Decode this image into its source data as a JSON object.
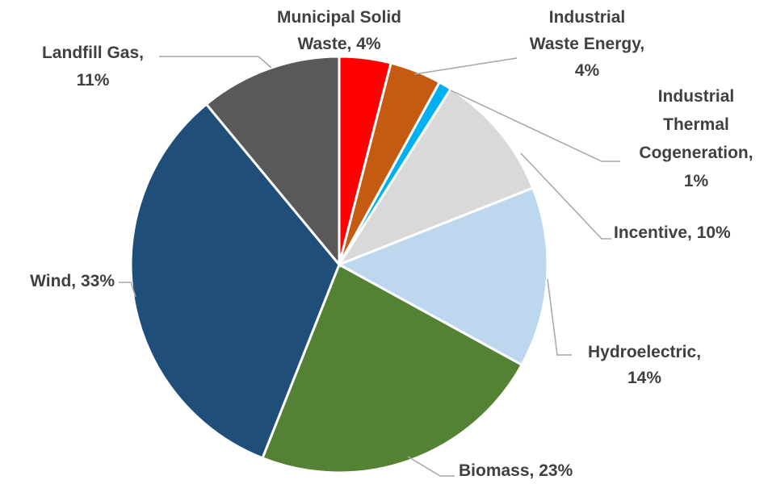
{
  "chart_data": {
    "type": "pie",
    "values": [
      4,
      4,
      1,
      10,
      14,
      23,
      33,
      11
    ],
    "value_labels": [
      "Municipal Solid Waste, 4%",
      "Industrial Waste Energy, 4%",
      "Industrial Thermal Cogeneration, 1%",
      "Incentive, 10%",
      "Hydroelectric, 14%",
      "Biomass, 23%",
      "Wind, 33%",
      "Landfill Gas, 11%"
    ],
    "colors": [
      "#ff0000",
      "#c55a11",
      "#00b0f0",
      "#d9d9d9",
      "#bdd7ee",
      "#548235",
      "#1f4e79",
      "#595959"
    ]
  }
}
